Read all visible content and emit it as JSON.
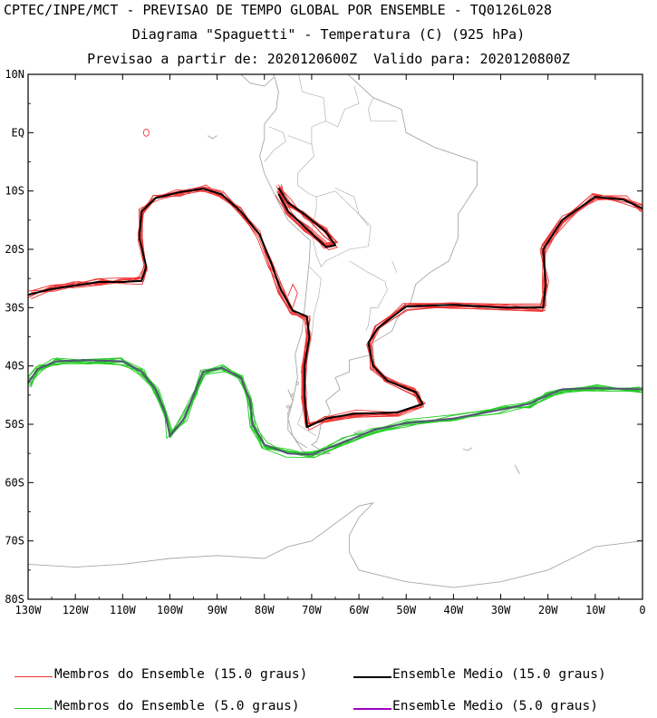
{
  "header": {
    "line1": "CPTEC/INPE/MCT - PREVISAO DE TEMPO GLOBAL POR ENSEMBLE - TQ0126L028",
    "line2": "Diagrama \"Spaguetti\" - Temperatura (C) (925 hPa)",
    "line3": "Previsao a partir de: 2020120600Z  Valido para: 2020120800Z"
  },
  "legend": {
    "members_15": "Membros do Ensemble (15.0 graus)",
    "mean_15": "Ensemble Medio (15.0 graus)",
    "members_5": "Membros do Ensemble (5.0 graus)",
    "mean_5": "Ensemble Medio (5.0 graus)"
  },
  "colors": {
    "members_15": "#ee3333",
    "mean_15": "#000000",
    "members_5": "#22cc22",
    "mean_5": "#a000c0",
    "mean_5_drawn": "#555577",
    "coast": "#a8a8a8"
  },
  "chart_data": {
    "type": "contour-map",
    "title": "Diagrama \"Spaguetti\" - Temperatura (C) (925 hPa)",
    "xlim": [
      -130,
      0
    ],
    "ylim": [
      -80,
      10
    ],
    "x_ticks": [
      "130W",
      "120W",
      "110W",
      "100W",
      "90W",
      "80W",
      "70W",
      "60W",
      "50W",
      "40W",
      "30W",
      "20W",
      "10W",
      "0"
    ],
    "x_tick_values": [
      -130,
      -120,
      -110,
      -100,
      -90,
      -80,
      -70,
      -60,
      -50,
      -40,
      -30,
      -20,
      -10,
      0
    ],
    "y_ticks": [
      "10N",
      "EQ",
      "10S",
      "20S",
      "30S",
      "40S",
      "50S",
      "60S",
      "70S",
      "80S"
    ],
    "y_tick_values": [
      10,
      0,
      -10,
      -20,
      -30,
      -40,
      -50,
      -60,
      -70,
      -80
    ],
    "series": [
      {
        "name": "Ensemble Medio (15.0 graus)",
        "contour": "15",
        "points": [
          [
            -130,
            -27.8
          ],
          [
            -125,
            -26.8
          ],
          [
            -120,
            -26.2
          ],
          [
            -115,
            -25.6
          ],
          [
            -110,
            -25.6
          ],
          [
            -106,
            -25.4
          ],
          [
            -105,
            -23
          ],
          [
            -106.5,
            -18
          ],
          [
            -106,
            -13.5
          ],
          [
            -103,
            -11.2
          ],
          [
            -98,
            -10.2
          ],
          [
            -93,
            -9.6
          ],
          [
            -89,
            -10.6
          ],
          [
            -85,
            -13.5
          ],
          [
            -81,
            -17.5
          ],
          [
            -78.5,
            -22.5
          ],
          [
            -76.5,
            -27
          ],
          [
            -74,
            -30.5
          ],
          [
            -71,
            -31.5
          ],
          [
            -70.5,
            -35
          ],
          [
            -71.5,
            -40
          ],
          [
            -71.5,
            -45
          ],
          [
            -71,
            -50.5
          ],
          [
            -67,
            -49
          ],
          [
            -61,
            -48.2
          ],
          [
            -52,
            -48
          ],
          [
            -46.5,
            -46.5
          ],
          [
            -48,
            -44.5
          ],
          [
            -54,
            -42.5
          ],
          [
            -57,
            -40
          ],
          [
            -58,
            -36
          ],
          [
            -56,
            -33.5
          ],
          [
            -50,
            -29.8
          ],
          [
            -40,
            -29.5
          ],
          [
            -30,
            -30
          ],
          [
            -21,
            -30
          ],
          [
            -20.5,
            -26
          ],
          [
            -21,
            -20
          ],
          [
            -17,
            -15
          ],
          [
            -10,
            -11
          ],
          [
            -4,
            -11.5
          ],
          [
            0,
            -13
          ]
        ]
      },
      {
        "name": "Ensemble Medio (15.0 graus)",
        "contour": "15",
        "points": [
          [
            -77,
            -9.5
          ],
          [
            -75,
            -12
          ],
          [
            -71.5,
            -14
          ],
          [
            -67,
            -17
          ],
          [
            -65,
            -19.3
          ],
          [
            -67,
            -19.6
          ],
          [
            -71,
            -16.5
          ],
          [
            -75,
            -13.5
          ],
          [
            -77,
            -10.5
          ]
        ]
      },
      {
        "name": "Ensemble Medio (5.0 graus)",
        "contour": "5",
        "points": [
          [
            -130,
            -43
          ],
          [
            -128,
            -40.5
          ],
          [
            -124,
            -39.2
          ],
          [
            -118,
            -39
          ],
          [
            -110,
            -39.2
          ],
          [
            -106,
            -41
          ],
          [
            -103,
            -44
          ],
          [
            -101,
            -48
          ],
          [
            -100,
            -52
          ],
          [
            -97,
            -49
          ],
          [
            -95,
            -45
          ],
          [
            -93,
            -41
          ],
          [
            -89,
            -40.3
          ],
          [
            -85,
            -42
          ],
          [
            -83,
            -46
          ],
          [
            -82.5,
            -50
          ],
          [
            -80,
            -53.5
          ],
          [
            -75,
            -55
          ],
          [
            -70,
            -55.2
          ],
          [
            -63,
            -53
          ],
          [
            -57,
            -51
          ],
          [
            -50,
            -49.8
          ],
          [
            -40,
            -49
          ],
          [
            -30,
            -47.5
          ],
          [
            -24,
            -46.5
          ],
          [
            -20,
            -45
          ],
          [
            -17,
            -44
          ],
          [
            -10,
            -43.8
          ],
          [
            0,
            -44
          ]
        ]
      }
    ]
  }
}
